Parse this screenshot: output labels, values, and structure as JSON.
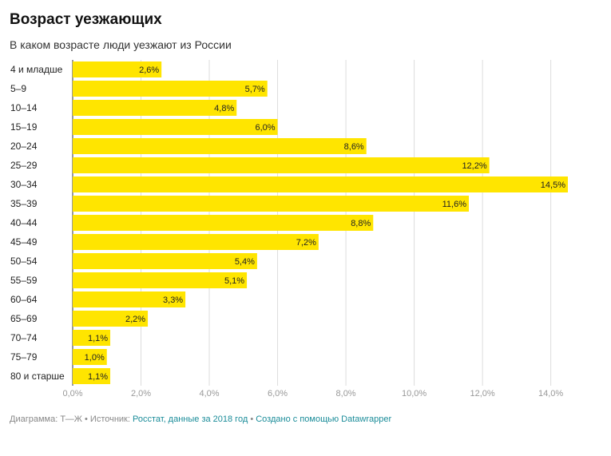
{
  "title": "Возраст уезжающих",
  "subtitle": "В каком возрасте люди уезжают из России",
  "footer": {
    "prefix": "Диаграмма: Т—Ж • Источник: ",
    "source": "Росстат, данные за 2018 год",
    "separator": " • ",
    "credit": "Создано с помощью Datawrapper"
  },
  "colors": {
    "bar": "#ffe500",
    "grid": "#dddddd",
    "axis": "#333333",
    "tick": "#999999"
  },
  "chart_data": {
    "type": "bar",
    "orientation": "horizontal",
    "categories": [
      "4 и младше",
      "5–9",
      "10–14",
      "15–19",
      "20–24",
      "25–29",
      "30–34",
      "35–39",
      "40–44",
      "45–49",
      "50–54",
      "55–59",
      "60–64",
      "65–69",
      "70–74",
      "75–79",
      "80 и старше"
    ],
    "values": [
      2.6,
      5.7,
      4.8,
      6.0,
      8.6,
      12.2,
      14.5,
      11.6,
      8.8,
      7.2,
      5.4,
      5.1,
      3.3,
      2.2,
      1.1,
      1.0,
      1.1
    ],
    "value_labels": [
      "2,6%",
      "5,7%",
      "4,8%",
      "6,0%",
      "8,6%",
      "12,2%",
      "14,5%",
      "11,6%",
      "8,8%",
      "7,2%",
      "5,4%",
      "5,1%",
      "3,3%",
      "2,2%",
      "1,1%",
      "1,0%",
      "1,1%"
    ],
    "xlim": [
      0,
      14.5
    ],
    "xticks": [
      0,
      2,
      4,
      6,
      8,
      10,
      12,
      14
    ],
    "xtick_labels": [
      "0,0%",
      "2,0%",
      "4,0%",
      "6,0%",
      "8,0%",
      "10,0%",
      "12,0%",
      "14,0%"
    ],
    "grid": true
  }
}
